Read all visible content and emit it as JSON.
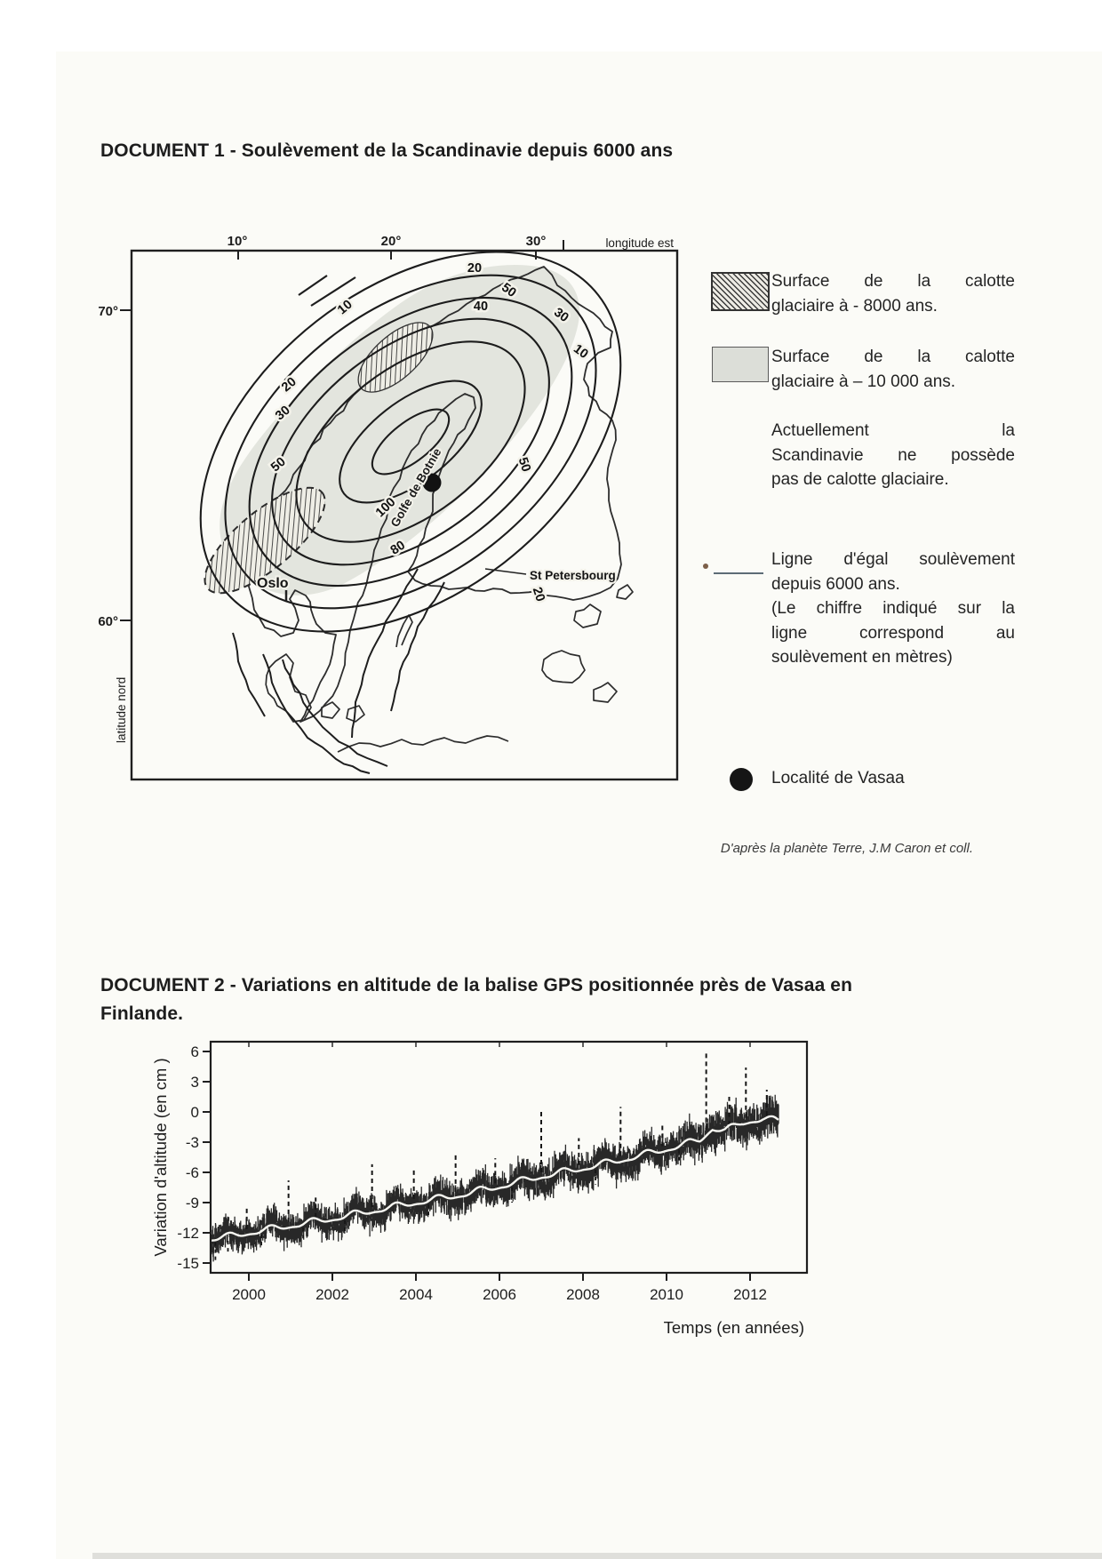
{
  "page": {
    "background": "#ffffff",
    "paper_tint": "#fbfbf7"
  },
  "doc1": {
    "title": "DOCUMENT 1 - Soulèvement de la Scandinavie depuis 6000 ans",
    "map": {
      "lon_ticks": [
        "10°",
        "20°",
        "30°"
      ],
      "lon_axis_label": "longitude est",
      "lat_ticks": [
        "70°",
        "60°"
      ],
      "lat_axis_label": "latitude nord",
      "gulf_label": "Golfe de Botnie",
      "cities": {
        "oslo": "Oslo",
        "st_petersbourg": "St Petersbourg"
      },
      "contour_label_values": [
        "20",
        "40",
        "50",
        "30",
        "10",
        "10",
        "20",
        "30",
        "50",
        "50",
        "100",
        "80",
        "20"
      ],
      "contour_unit": "mètres"
    },
    "legend": [
      {
        "swatch": "hatched",
        "lines": [
          "Surface de la calotte",
          "glaciaire à - 8000 ans."
        ],
        "justify": [
          true,
          false
        ]
      },
      {
        "swatch": "gray",
        "lines": [
          "Surface de la calotte",
          "glaciaire à – 10 000 ans."
        ],
        "justify": [
          true,
          false
        ]
      },
      {
        "swatch": "none",
        "lines": [
          "Actuellement la",
          "Scandinavie ne possède",
          "pas de calotte glaciaire."
        ],
        "justify": [
          true,
          true,
          false
        ]
      },
      {
        "swatch": "line",
        "lines": [
          "Ligne d'égal soulèvement",
          "depuis 6000 ans.",
          "(Le chiffre indiqué sur la",
          "ligne correspond au",
          "soulèvement en mètres)"
        ],
        "justify": [
          true,
          false,
          true,
          true,
          false
        ]
      },
      {
        "swatch": "dot",
        "lines": [
          "Localité de Vasaa"
        ],
        "justify": [
          false
        ]
      }
    ],
    "source": "D'après  la planète Terre, J.M Caron et coll."
  },
  "doc2": {
    "title_line1": "DOCUMENT 2 - Variations en altitude de la balise GPS positionnée près de Vasaa en",
    "title_line2": "Finlande."
  },
  "chart_data": {
    "type": "scatter",
    "description": "Série temporelle GPS bruitée : variation d'altitude de la balise près de Vasaa",
    "xlabel": "Temps (en années)",
    "ylabel": "Variation d'altitude (en cm )",
    "xlim": [
      1999,
      2013.4
    ],
    "ylim": [
      -16,
      7
    ],
    "x_ticks": [
      2000,
      2002,
      2004,
      2006,
      2008,
      2010,
      2012
    ],
    "y_ticks": [
      6,
      3,
      0,
      -3,
      -6,
      -9,
      -12,
      -15
    ],
    "grid": false,
    "trend_cm": [
      [
        1999.05,
        -12.6
      ],
      [
        1999.5,
        -12.4
      ],
      [
        2000,
        -12.0
      ],
      [
        2001,
        -11.3
      ],
      [
        2002,
        -10.6
      ],
      [
        2003,
        -9.8
      ],
      [
        2004,
        -9.0
      ],
      [
        2005,
        -8.3
      ],
      [
        2006,
        -7.4
      ],
      [
        2007,
        -6.4
      ],
      [
        2008,
        -5.6
      ],
      [
        2009,
        -4.7
      ],
      [
        2010,
        -3.7
      ],
      [
        2010.8,
        -2.8
      ],
      [
        2011.1,
        -1.6
      ],
      [
        2011.4,
        -1.9
      ],
      [
        2011.8,
        -1.1
      ],
      [
        2012.0,
        -0.9
      ],
      [
        2012.3,
        -0.7
      ],
      [
        2012.68,
        -0.9
      ]
    ],
    "seasonal_amplitude_cm": 0.55,
    "noise_amplitude_cm": 1.2,
    "spikes_up": [
      [
        1999.95,
        -9.5
      ],
      [
        2000.95,
        -6.8
      ],
      [
        2001.6,
        -8.5
      ],
      [
        2002.95,
        -5.2
      ],
      [
        2003.95,
        -5.8
      ],
      [
        2004.95,
        -4.2
      ],
      [
        2005.9,
        -4.6
      ],
      [
        2007.0,
        0.3
      ],
      [
        2007.9,
        -2.6
      ],
      [
        2008.9,
        0.5
      ],
      [
        2009.9,
        -1.2
      ],
      [
        2010.95,
        5.8
      ],
      [
        2011.5,
        1.5
      ],
      [
        2011.9,
        4.4
      ],
      [
        2012.4,
        2.2
      ]
    ],
    "spikes_down": [
      [
        1999.2,
        -14.8
      ],
      [
        1999.5,
        -14.2
      ],
      [
        2000.3,
        -13.6
      ],
      [
        2001.3,
        -12.8
      ],
      [
        2002.3,
        -11.9
      ],
      [
        2004.3,
        -10.6
      ],
      [
        2006.3,
        -9.0
      ],
      [
        2008.3,
        -7.2
      ],
      [
        2010.3,
        -5.0
      ]
    ],
    "point_color": "#161616",
    "trend_line_color": "#f6f6f1"
  }
}
